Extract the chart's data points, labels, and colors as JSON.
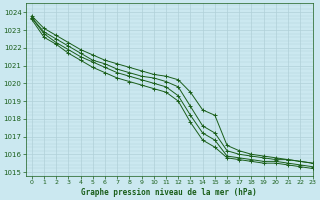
{
  "title": "Graphe pression niveau de la mer (hPa)",
  "bg_color": "#cbe8f0",
  "grid_color": "#b0d0d8",
  "line_color": "#1a5e1a",
  "xlim": [
    -0.5,
    23
  ],
  "ylim": [
    1014.8,
    1024.5
  ],
  "yticks": [
    1015,
    1016,
    1017,
    1018,
    1019,
    1020,
    1021,
    1022,
    1023,
    1024
  ],
  "xticks": [
    0,
    1,
    2,
    3,
    4,
    5,
    6,
    7,
    8,
    9,
    10,
    11,
    12,
    13,
    14,
    15,
    16,
    17,
    18,
    19,
    20,
    21,
    22,
    23
  ],
  "series": [
    [
      1023.8,
      1023.1,
      1022.7,
      1022.3,
      1021.9,
      1021.6,
      1021.3,
      1021.1,
      1020.9,
      1020.7,
      1020.5,
      1020.4,
      1020.2,
      1019.5,
      1018.5,
      1018.2,
      1016.5,
      1016.2,
      1016.0,
      1015.9,
      1015.8,
      1015.7,
      1015.6,
      1015.5
    ],
    [
      1023.7,
      1022.9,
      1022.5,
      1022.1,
      1021.7,
      1021.3,
      1021.1,
      1020.8,
      1020.6,
      1020.4,
      1020.3,
      1020.1,
      1019.8,
      1018.7,
      1017.6,
      1017.2,
      1016.2,
      1016.0,
      1015.9,
      1015.8,
      1015.7,
      1015.7,
      1015.6,
      1015.5
    ],
    [
      1023.7,
      1022.8,
      1022.3,
      1021.9,
      1021.5,
      1021.2,
      1020.9,
      1020.6,
      1020.4,
      1020.2,
      1020.0,
      1019.8,
      1019.3,
      1018.2,
      1017.2,
      1016.8,
      1015.9,
      1015.8,
      1015.7,
      1015.6,
      1015.6,
      1015.5,
      1015.4,
      1015.3
    ],
    [
      1023.6,
      1022.6,
      1022.2,
      1021.7,
      1021.3,
      1020.9,
      1020.6,
      1020.3,
      1020.1,
      1019.9,
      1019.7,
      1019.5,
      1019.0,
      1017.8,
      1016.8,
      1016.4,
      1015.8,
      1015.7,
      1015.6,
      1015.5,
      1015.5,
      1015.4,
      1015.3,
      1015.2
    ]
  ]
}
